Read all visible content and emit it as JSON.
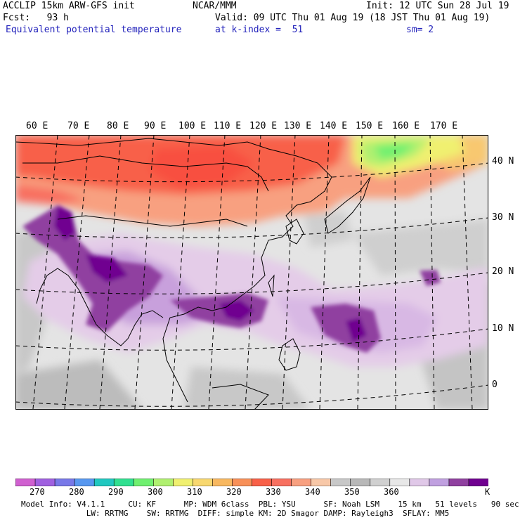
{
  "header": {
    "model": "ACCLIP 15km ARW-GFS init",
    "org": "NCAR/MMM",
    "init": "Init: 12 UTC Sun 28 Jul 19",
    "fcst": "Fcst:   93 h",
    "valid": "Valid: 09 UTC Thu 01 Aug 19 (18 JST Thu 01 Aug 19)",
    "field": "Equivalent potential temperature",
    "level": "at k-index =  51",
    "smooth": "sm= 2"
  },
  "map": {
    "lon_labels": [
      "60 E",
      "70 E",
      "80 E",
      "90 E",
      "100 E",
      "110 E",
      "120 E",
      "130 E",
      "140 E",
      "150 E",
      "160 E",
      "170 E"
    ],
    "lat_labels": [
      "40 N",
      "30 N",
      "20 N",
      "10 N",
      "0"
    ]
  },
  "colorbar": {
    "colors": [
      "#d060d0",
      "#a060e0",
      "#7878e8",
      "#5898f0",
      "#20c8c0",
      "#30e090",
      "#70f070",
      "#b0f070",
      "#f0f070",
      "#f8d870",
      "#f8b860",
      "#f89058",
      "#f86048",
      "#f87060",
      "#f8a080",
      "#f8c8a8",
      "#c8c8c8",
      "#b8b8b8",
      "#d0d0d0",
      "#e8e8e8",
      "#e0c8e8",
      "#c0a0e0",
      "#9040a0",
      "#700090"
    ],
    "labels": [
      "270",
      "280",
      "290",
      "300",
      "310",
      "320",
      "330",
      "340",
      "350",
      "360"
    ],
    "unit": "K"
  },
  "footer": {
    "line1": "Model Info: V4.1.1     CU: KF      MP: WDM 6class  PBL: YSU      SF: Noah LSM    15 km   51 levels   90 sec",
    "line2": "              LW: RRTMG    SW: RRTMG  DIFF: simple KM: 2D Smagor DAMP: Rayleigh3  SFLAY: MM5"
  }
}
